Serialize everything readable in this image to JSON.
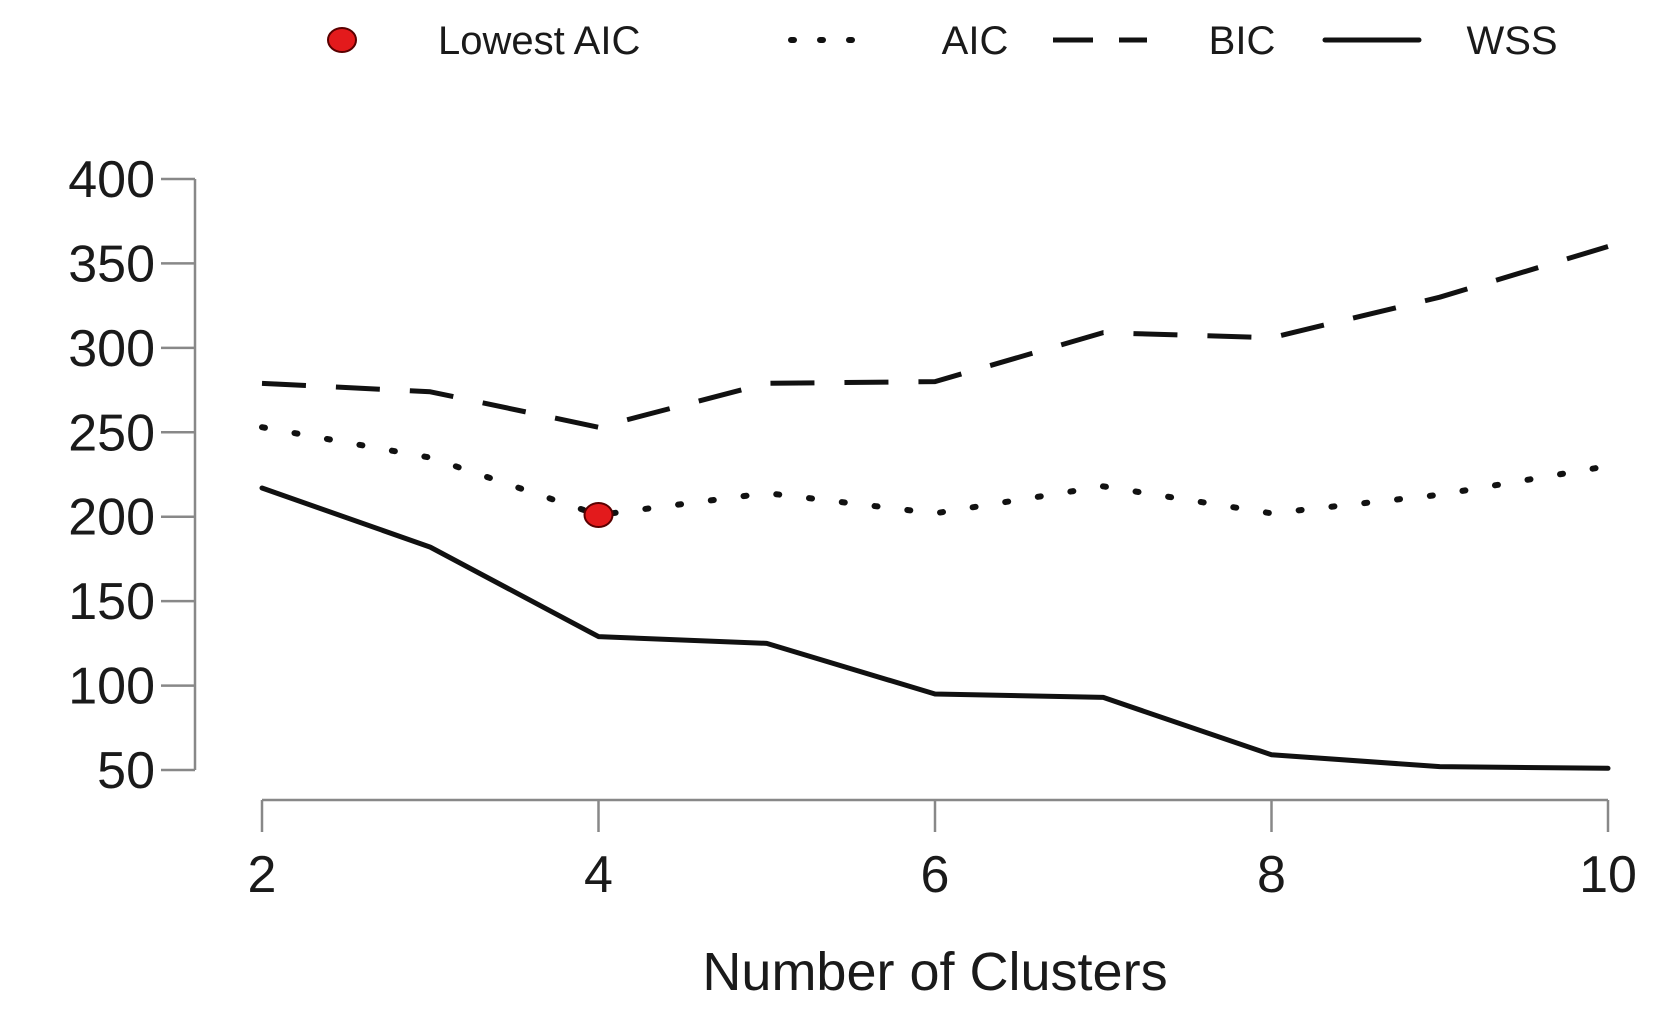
{
  "chart_data": {
    "type": "line",
    "title": "",
    "xlabel": "Number of Clusters",
    "ylabel": "",
    "x": [
      2,
      3,
      4,
      5,
      6,
      7,
      8,
      9,
      10
    ],
    "xlim": [
      2,
      10
    ],
    "ylim": [
      50,
      400
    ],
    "x_ticks": [
      "2",
      "4",
      "6",
      "8",
      "10"
    ],
    "y_ticks": [
      "50",
      "100",
      "150",
      "200",
      "250",
      "300",
      "350",
      "400"
    ],
    "grid": false,
    "legend_position": "top",
    "series": [
      {
        "name": "AIC",
        "style": "dotted",
        "color": "#111111",
        "values": [
          253,
          235,
          201,
          214,
          202,
          218,
          202,
          213,
          230
        ]
      },
      {
        "name": "BIC",
        "style": "dashed",
        "color": "#111111",
        "values": [
          279,
          274,
          253,
          279,
          280,
          309,
          306,
          330,
          360
        ]
      },
      {
        "name": "WSS",
        "style": "solid",
        "color": "#111111",
        "values": [
          217,
          182,
          129,
          125,
          95,
          93,
          59,
          52,
          51
        ]
      }
    ],
    "highlight": {
      "name": "Lowest AIC",
      "x": 4,
      "y": 201,
      "color": "#e31a1c"
    },
    "legend": [
      {
        "label": "Lowest AIC",
        "kind": "point",
        "color": "#e31a1c"
      },
      {
        "label": "AIC",
        "kind": "dotted"
      },
      {
        "label": "BIC",
        "kind": "dashed"
      },
      {
        "label": "WSS",
        "kind": "solid"
      }
    ]
  }
}
